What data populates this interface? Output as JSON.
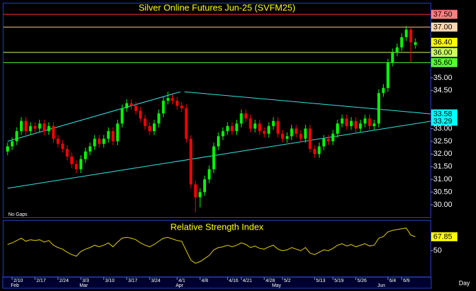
{
  "chart_data": [
    {
      "type": "candlestick",
      "title": "Silver Online Futures Jun-25 (SVFM25)",
      "mode_label": "No Gaps",
      "x_axis_label": "Day",
      "up_color": "#00ff00",
      "down_color": "#ff0000",
      "trendline_color": "#33e6e6",
      "xlim": [
        -0.9,
        92.3
      ],
      "ylim": [
        29.51,
        37.93
      ],
      "yticks": [
        {
          "value": 30,
          "label": "30.00"
        },
        {
          "value": 30.5,
          "label": "30.50"
        },
        {
          "value": 31,
          "label": "31.00"
        },
        {
          "value": 31.5,
          "label": "31.50"
        },
        {
          "value": 32,
          "label": "32.00"
        },
        {
          "value": 32.5,
          "label": "32.50"
        },
        {
          "value": 33,
          "label": "33.00"
        },
        {
          "value": 34.5,
          "label": "34.50"
        },
        {
          "value": 35,
          "label": "35.00"
        }
      ],
      "levels": [
        {
          "value": 37.5,
          "label": "37.50",
          "color": "#ff8080",
          "line_color": "#ff3030"
        },
        {
          "value": 37,
          "label": "37.00",
          "color": "#ffd8b0",
          "line_color": "#ffc890"
        },
        {
          "value": 36.4,
          "label": "36.40",
          "color": "#ffff00"
        },
        {
          "value": 36,
          "label": "36.00",
          "color": "#ccff66",
          "line_color": "#ccff66"
        },
        {
          "value": 35.6,
          "label": "35.60",
          "color": "#55ff33",
          "line_color": "#55ff33"
        },
        {
          "value": 33.58,
          "label": "33.58",
          "color": "#00ffff"
        },
        {
          "value": 33.29,
          "label": "33.29",
          "color": "#00ffff"
        }
      ],
      "trendlines": [
        {
          "x": [
            0,
            37.7
          ],
          "y": [
            32.5,
            34.45
          ]
        },
        {
          "x": [
            38.6,
            92.3
          ],
          "y": [
            34.45,
            33.58
          ]
        },
        {
          "x": [
            0,
            92.3
          ],
          "y": [
            30.65,
            33.29
          ]
        }
      ],
      "categories": [
        null,
        "2/10",
        null,
        null,
        null,
        null,
        "2/17",
        null,
        null,
        null,
        null,
        "2/24",
        null,
        null,
        null,
        null,
        "3/3",
        null,
        null,
        null,
        null,
        "3/10",
        null,
        null,
        null,
        null,
        "3/17",
        null,
        null,
        null,
        null,
        "3/24",
        null,
        null,
        null,
        null,
        null,
        "4/1",
        null,
        null,
        null,
        null,
        "4/8",
        null,
        null,
        null,
        null,
        null,
        "4/16",
        null,
        null,
        "4/21",
        null,
        null,
        null,
        null,
        "4/28",
        null,
        null,
        null,
        "5/2",
        null,
        null,
        null,
        null,
        null,
        null,
        "5/13",
        null,
        null,
        null,
        "5/19",
        null,
        null,
        null,
        null,
        "5/26",
        null,
        null,
        null,
        null,
        null,
        null,
        "6/4",
        null,
        null,
        "6/9",
        null,
        null,
        null
      ],
      "months": [
        "Feb",
        "Mar",
        "Apr",
        "May",
        "Jun"
      ],
      "month_starts": [
        1,
        16,
        37,
        58,
        81
      ],
      "open": [
        32.1,
        32.3,
        32.5,
        32.9,
        33.3,
        32.9,
        33.1,
        33.0,
        33.2,
        32.9,
        33.1,
        32.6,
        32.4,
        32.2,
        31.9,
        31.6,
        31.4,
        31.8,
        32.1,
        32.3,
        32.6,
        32.4,
        32.6,
        32.9,
        32.5,
        33.2,
        33.8,
        34.0,
        33.9,
        33.7,
        33.4,
        33.1,
        32.9,
        33.2,
        33.6,
        34.1,
        34.2,
        34.1,
        33.9,
        33.8,
        32.6,
        30.8,
        30.3,
        30.5,
        31.0,
        31.4,
        32.3,
        32.7,
        32.9,
        33.1,
        32.9,
        33.2,
        33.6,
        33.4,
        33.0,
        33.2,
        32.9,
        32.8,
        33.1,
        33.3,
        32.8,
        32.6,
        32.7,
        33.0,
        32.8,
        32.6,
        33.0,
        32.2,
        32.0,
        32.3,
        32.6,
        32.5,
        32.8,
        33.2,
        33.4,
        33.1,
        33.3,
        33.0,
        33.2,
        33.4,
        33.1,
        33.2,
        34.4,
        34.6,
        35.6,
        36.0,
        36.2,
        36.6,
        36.9,
        36.3
      ],
      "high": [
        32.45,
        32.65,
        33.05,
        33.45,
        33.45,
        33.25,
        33.25,
        33.35,
        33.35,
        33.25,
        33.25,
        32.75,
        32.55,
        32.35,
        32.05,
        31.75,
        31.95,
        32.25,
        32.45,
        32.75,
        32.75,
        32.75,
        33.05,
        33.05,
        33.35,
        33.95,
        34.15,
        34.15,
        34.05,
        33.85,
        33.55,
        33.25,
        33.35,
        33.75,
        34.25,
        34.45,
        34.35,
        34.25,
        34.05,
        33.95,
        32.75,
        30.95,
        30.65,
        31.15,
        31.55,
        32.45,
        32.85,
        33.05,
        33.25,
        33.25,
        33.35,
        33.75,
        33.75,
        33.55,
        33.35,
        33.35,
        33.05,
        33.25,
        33.45,
        33.45,
        32.95,
        32.85,
        33.15,
        33.15,
        32.95,
        33.15,
        33.15,
        32.35,
        32.45,
        32.75,
        32.75,
        32.95,
        33.35,
        33.55,
        33.55,
        33.45,
        33.45,
        33.35,
        33.55,
        33.55,
        33.35,
        34.55,
        34.75,
        35.75,
        36.15,
        36.35,
        36.75,
        37.05,
        37.0,
        36.55
      ],
      "low": [
        31.95,
        32.15,
        32.35,
        32.75,
        32.75,
        32.75,
        32.85,
        32.85,
        32.75,
        32.75,
        32.45,
        32.25,
        32.05,
        31.75,
        31.45,
        31.25,
        31.25,
        31.65,
        31.95,
        32.15,
        32.25,
        32.25,
        32.45,
        32.35,
        32.35,
        33.05,
        33.65,
        33.75,
        33.55,
        33.25,
        32.95,
        32.75,
        32.75,
        33.05,
        33.45,
        33.95,
        33.95,
        33.75,
        33.65,
        32.45,
        30.65,
        29.7,
        29.9,
        30.35,
        30.85,
        31.25,
        32.15,
        32.55,
        32.75,
        32.75,
        32.75,
        33.05,
        33.25,
        32.85,
        32.85,
        32.75,
        32.65,
        32.65,
        32.95,
        32.65,
        32.45,
        32.45,
        32.55,
        32.65,
        32.45,
        32.45,
        32.05,
        31.85,
        31.85,
        32.15,
        32.35,
        32.35,
        32.65,
        33.05,
        32.95,
        32.95,
        32.85,
        32.85,
        33.05,
        32.95,
        32.95,
        33.05,
        34.25,
        34.45,
        35.45,
        35.85,
        36.05,
        36.45,
        35.6,
        36.15
      ],
      "close": [
        32.3,
        32.5,
        32.9,
        33.3,
        32.9,
        33.1,
        33.0,
        33.2,
        32.9,
        33.1,
        32.6,
        32.4,
        32.2,
        31.9,
        31.6,
        31.4,
        31.8,
        32.1,
        32.3,
        32.6,
        32.4,
        32.6,
        32.9,
        32.5,
        33.2,
        33.8,
        34.0,
        33.9,
        33.7,
        33.4,
        33.1,
        32.9,
        33.2,
        33.6,
        34.1,
        34.2,
        34.1,
        33.9,
        33.8,
        32.6,
        30.8,
        30.3,
        30.5,
        31.0,
        31.4,
        32.3,
        32.7,
        32.9,
        33.1,
        32.9,
        33.2,
        33.6,
        33.4,
        33.0,
        33.2,
        32.9,
        32.8,
        33.1,
        33.3,
        32.8,
        32.6,
        32.7,
        33.0,
        32.8,
        32.6,
        33.0,
        32.2,
        32.0,
        32.3,
        32.6,
        32.5,
        32.8,
        33.2,
        33.4,
        33.1,
        33.3,
        33.0,
        33.2,
        33.4,
        33.1,
        33.2,
        34.4,
        34.6,
        35.6,
        36.0,
        36.2,
        36.6,
        36.9,
        36.4,
        36.4
      ]
    },
    {
      "type": "line",
      "title": "Relative Strength Index",
      "color": "#e6d200",
      "ylim": [
        17,
        88.4
      ],
      "yticks": [
        50
      ],
      "last_label_color": "#ffff00",
      "values": [
        58,
        60,
        63,
        66,
        62,
        64,
        63,
        64,
        61,
        63,
        57,
        54,
        52,
        48,
        45,
        43,
        49,
        52,
        54,
        57,
        55,
        57,
        60,
        55,
        61,
        66,
        67,
        66,
        64,
        60,
        57,
        55,
        58,
        62,
        66,
        67,
        65,
        63,
        62,
        50,
        38,
        34,
        36,
        40,
        44,
        51,
        54,
        55,
        57,
        55,
        57,
        60,
        58,
        54,
        56,
        53,
        52,
        55,
        57,
        52,
        50,
        51,
        54,
        52,
        50,
        54,
        47,
        45,
        48,
        51,
        50,
        53,
        57,
        59,
        56,
        58,
        55,
        57,
        59,
        56,
        57,
        66,
        68,
        74,
        76,
        77,
        78,
        79,
        70,
        67.85
      ]
    }
  ]
}
